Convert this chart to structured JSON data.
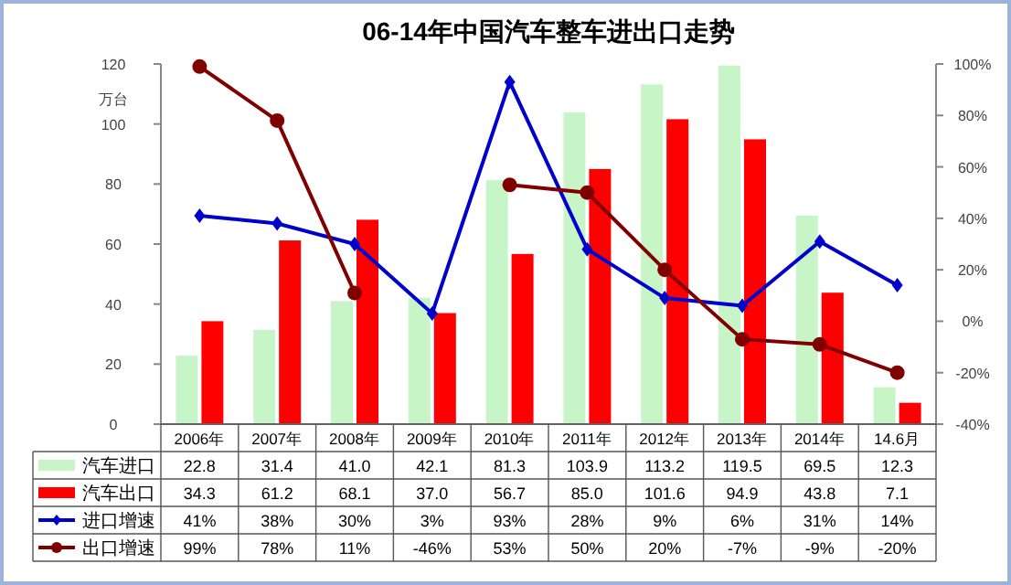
{
  "chart_data": {
    "type": "bar",
    "title": "06-14年中国汽车整车进出口走势",
    "ylabel": "万台",
    "categories": [
      "2006年",
      "2007年",
      "2008年",
      "2009年",
      "2010年",
      "2011年",
      "2012年",
      "2013年",
      "2014年",
      "14.6月"
    ],
    "series": [
      {
        "name": "汽车进口",
        "color": "#c8f5c8",
        "values": [
          22.8,
          31.4,
          41.0,
          42.1,
          81.3,
          103.9,
          113.2,
          119.5,
          69.5,
          12.3
        ],
        "value_labels": [
          "22.8",
          "31.4",
          "41.0",
          "42.1",
          "81.3",
          "103.9",
          "113.2",
          "119.5",
          "69.5",
          "12.3"
        ]
      },
      {
        "name": "汽车出口",
        "color": "#ff0000",
        "values": [
          34.3,
          61.2,
          68.1,
          37.0,
          56.7,
          85.0,
          101.6,
          94.9,
          43.8,
          7.1
        ],
        "value_labels": [
          "34.3",
          "61.2",
          "68.1",
          "37.0",
          "56.7",
          "85.0",
          "101.6",
          "94.9",
          "43.8",
          "7.1"
        ]
      },
      {
        "name": "进口增速",
        "type": "line",
        "axis": "y2",
        "marker": "diamond",
        "color": "#0000cc",
        "values": [
          41,
          38,
          30,
          3,
          93,
          28,
          9,
          6,
          31,
          14
        ],
        "value_labels": [
          "41%",
          "38%",
          "30%",
          "3%",
          "93%",
          "28%",
          "9%",
          "6%",
          "31%",
          "14%"
        ]
      },
      {
        "name": "出口增速",
        "type": "line",
        "axis": "y2",
        "marker": "circle",
        "color": "#800000",
        "values": [
          99,
          78,
          11,
          null,
          53,
          50,
          20,
          -7,
          -9,
          -20
        ],
        "value_labels": [
          "99%",
          "78%",
          "11%",
          "-46%",
          "53%",
          "50%",
          "20%",
          "-7%",
          "-9%",
          "-20%"
        ]
      }
    ],
    "ylim": [
      0,
      120
    ],
    "yticks": [
      0,
      20,
      40,
      60,
      80,
      100,
      120
    ],
    "y2lim": [
      -40,
      100
    ],
    "y2ticks": [
      {
        "value": -40,
        "label": "-40%"
      },
      {
        "value": -20,
        "label": "-20%"
      },
      {
        "value": 0,
        "label": "0%"
      },
      {
        "value": 20,
        "label": "20%"
      },
      {
        "value": 40,
        "label": "40%"
      },
      {
        "value": 60,
        "label": "60%"
      },
      {
        "value": 80,
        "label": "80%"
      },
      {
        "value": 100,
        "label": "100%"
      }
    ],
    "legend": "bottom",
    "grid": false
  }
}
